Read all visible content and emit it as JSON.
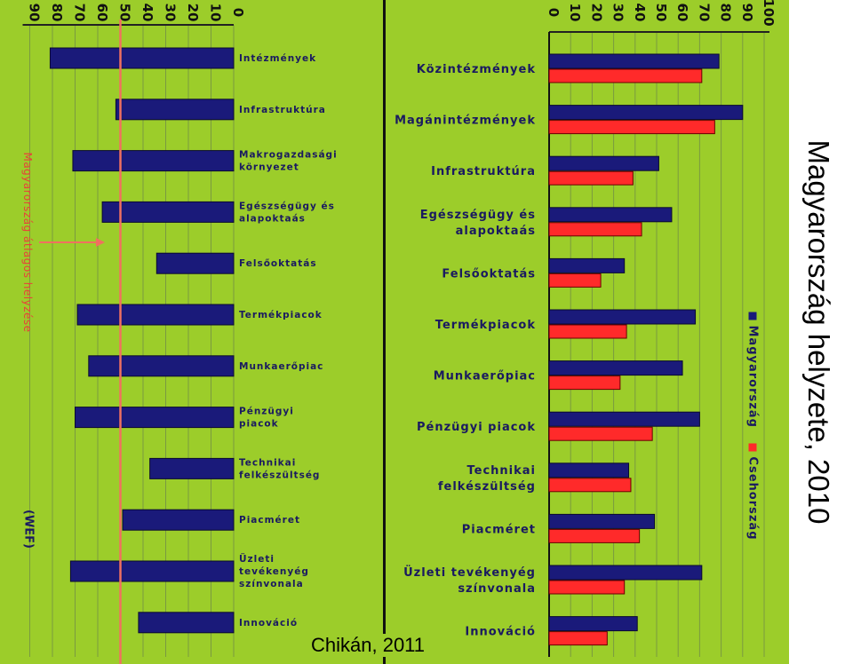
{
  "title": "Magyarország helyzete, 2010",
  "credit": "Chikán, 2011",
  "colors": {
    "background": "#9ccd2a",
    "hungary": "#1a1a7a",
    "czech": "#ff2a2a",
    "average_line": "#f07060",
    "text": "#1a1a60"
  },
  "chart_data": [
    {
      "type": "bar",
      "orientation": "horizontal",
      "direction": "reversed",
      "source_note": "(WEF)",
      "side_note": "Magyarország átlagos helyzése",
      "reference_value": 50,
      "xlim": [
        0,
        90
      ],
      "xticks": [
        0,
        10,
        20,
        30,
        40,
        50,
        60,
        70,
        80,
        90
      ],
      "categories": [
        [
          "Intézmények"
        ],
        [
          "Infrastruktúra"
        ],
        [
          "Makrogazdasági",
          "környezet"
        ],
        [
          "Egészségügy és",
          "alapoktaás"
        ],
        [
          "Felsőoktatás"
        ],
        [
          "Termékpiacok"
        ],
        [
          "Munkaerőpiac"
        ],
        [
          "Pénzügyi",
          "piacok"
        ],
        [
          "Technikai",
          "felkészültség"
        ],
        [
          "Piacméret"
        ],
        [
          "Üzleti",
          "tevékenyég",
          "színvonala"
        ],
        [
          "Innováció"
        ]
      ],
      "values": [
        81,
        52,
        71,
        58,
        34,
        69,
        64,
        70,
        37,
        49,
        72,
        42
      ]
    },
    {
      "type": "bar",
      "orientation": "horizontal",
      "xlim": [
        0,
        100
      ],
      "xticks": [
        0,
        10,
        20,
        30,
        40,
        50,
        60,
        70,
        80,
        90,
        100
      ],
      "legend": "top-right",
      "categories": [
        [
          "Közintézmények"
        ],
        [
          "Magánintézmények"
        ],
        [
          "Infrastruktúra"
        ],
        [
          "Egészségügy és",
          "alapoktaás"
        ],
        [
          "Felsőoktatás"
        ],
        [
          "Termékpiacok"
        ],
        [
          "Munkaerőpiac"
        ],
        [
          "Pénzügyi piacok"
        ],
        [
          "Technikai",
          "felkészültség"
        ],
        [
          "Piacméret"
        ],
        [
          "Üzleti tevékenyég",
          "színvonala"
        ],
        [
          "Innováció"
        ]
      ],
      "series": [
        {
          "name": "Magyarország",
          "values": [
            79,
            90,
            51,
            57,
            35,
            68,
            62,
            70,
            37,
            49,
            71,
            41
          ]
        },
        {
          "name": "Csehország",
          "values": [
            71,
            77,
            39,
            43,
            24,
            36,
            33,
            48,
            38,
            42,
            35,
            27
          ]
        }
      ]
    }
  ]
}
